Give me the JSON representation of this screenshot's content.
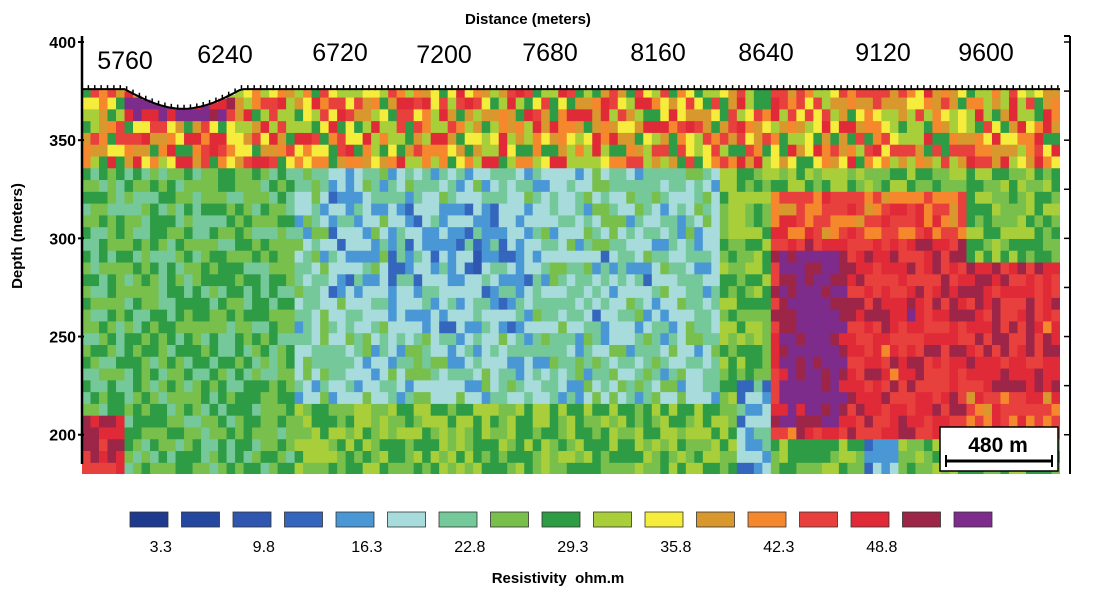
{
  "chart_data": {
    "type": "heatmap",
    "title": "",
    "xlabel": "Distance (meters)",
    "ylabel": "Depth (meters)",
    "x_ticks": [
      5760,
      6240,
      6720,
      7200,
      7680,
      8160,
      8640,
      9120,
      9600
    ],
    "y_ticks": [
      400,
      350,
      300,
      250,
      200
    ],
    "xlim": [
      5800,
      10400
    ],
    "ylim": [
      180,
      400
    ],
    "surface_elevation": 376,
    "colorbar": {
      "label": "Resistivity  ohm.m",
      "tick_labels": [
        "3.3",
        "9.8",
        "16.3",
        "22.8",
        "29.3",
        "35.8",
        "42.3",
        "48.8"
      ],
      "colors": [
        "#1d3a8f",
        "#2447a0",
        "#2f56b0",
        "#3466bd",
        "#4a97d6",
        "#a8dcdc",
        "#74c89a",
        "#78bf4c",
        "#2e9c45",
        "#a8cf3a",
        "#f5ec3c",
        "#d8982e",
        "#f5882d",
        "#e8403c",
        "#e02a38",
        "#9c2548",
        "#7e2c8c"
      ]
    },
    "scale_bar": "480 m",
    "zones": [
      {
        "x": [
          5800,
          10400
        ],
        "y": [
          180,
          376
        ],
        "value": 27.5
      },
      {
        "x": [
          5800,
          6800
        ],
        "y": [
          180,
          376
        ],
        "value": 24.5
      },
      {
        "x": [
          6800,
          8800
        ],
        "y": [
          215,
          350
        ],
        "value": 19.5
      },
      {
        "x": [
          6950,
          7150
        ],
        "y": [
          270,
          322
        ],
        "value": 16.3
      },
      {
        "x": [
          7250,
          7900
        ],
        "y": [
          255,
          320
        ],
        "value": 16.3
      },
      {
        "x": [
          7550,
          7650
        ],
        "y": [
          250,
          310
        ],
        "value": 16.3
      },
      {
        "x": [
          8220,
          8320
        ],
        "y": [
          260,
          295
        ],
        "value": 16.3
      },
      {
        "x": [
          8440,
          8520
        ],
        "y": [
          260,
          290
        ],
        "value": 16.3
      },
      {
        "x": [
          7650,
          7680
        ],
        "y": [
          282,
          295
        ],
        "value": 9.8
      },
      {
        "x": [
          8880,
          9020
        ],
        "y": [
          180,
          225
        ],
        "value": 16.3
      },
      {
        "x": [
          9500,
          9620
        ],
        "y": [
          180,
          205
        ],
        "value": 16.3
      },
      {
        "x": [
          9050,
          9950
        ],
        "y": [
          280,
          322
        ],
        "value": 42.3
      },
      {
        "x": [
          9050,
          9950
        ],
        "y": [
          200,
          300
        ],
        "value": 46.5
      },
      {
        "x": [
          9950,
          10400
        ],
        "y": [
          220,
          290
        ],
        "value": 46.5
      },
      {
        "x": [
          9950,
          10400
        ],
        "y": [
          200,
          220
        ],
        "value": 42.3
      },
      {
        "x": [
          9100,
          9400
        ],
        "y": [
          205,
          295
        ],
        "value": 51.5
      },
      {
        "x": [
          9130,
          9370
        ],
        "y": [
          215,
          285
        ],
        "value": 54.0
      },
      {
        "x": [
          9700,
          9750
        ],
        "y": [
          258,
          270
        ],
        "value": 50.5
      },
      {
        "x": [
          5800,
          6000
        ],
        "y": [
          195,
          210
        ],
        "value": 48.8
      },
      {
        "x": [
          5800,
          6000
        ],
        "y": [
          180,
          195
        ],
        "value": 46.5
      },
      {
        "x": [
          5800,
          10400
        ],
        "y": [
          338,
          376
        ],
        "value": 37.0
      },
      {
        "x": [
          6000,
          6500
        ],
        "y": [
          362,
          372
        ],
        "value": 54.0
      }
    ]
  }
}
